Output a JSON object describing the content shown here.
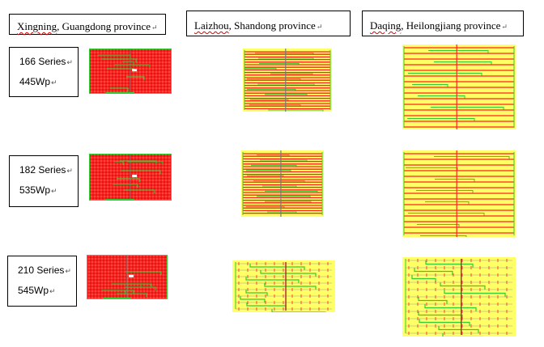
{
  "headers": [
    {
      "name_part": "Xingning",
      "rest": ", Guangdong province",
      "mark": "↵"
    },
    {
      "name_part": "Laizhou",
      "rest": ", Shandong province",
      "mark": "↵"
    },
    {
      "name_part": "Daqing",
      "rest": ", Heilongjiang province",
      "mark": "↵"
    }
  ],
  "rows": [
    {
      "series": "166 Series",
      "power": "445Wp",
      "mark": "↵"
    },
    {
      "series": "182 Series",
      "power": "535Wp",
      "mark": "↵"
    },
    {
      "series": "210 Series",
      "power": "545Wp",
      "mark": "↵"
    }
  ],
  "colors": {
    "red": "#ff2020",
    "dark_red": "#c00000",
    "green": "#33cc33",
    "yellow_bg": "#ffff66",
    "grey_line": "#777777"
  }
}
